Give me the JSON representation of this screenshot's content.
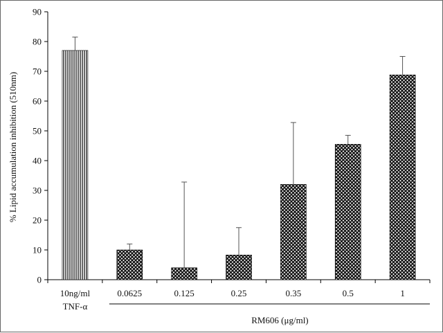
{
  "chart_data": {
    "type": "bar",
    "ylabel": "% Lipid accumulation inhibition (510nm)",
    "ylim": [
      0,
      90
    ],
    "yticks": [
      0,
      10,
      20,
      30,
      40,
      50,
      60,
      70,
      80,
      90
    ],
    "categories": [
      "10ng/ml",
      "0.0625",
      "0.125",
      "0.25",
      "0.35",
      "0.5",
      "1"
    ],
    "values": [
      77,
      10,
      4,
      8.3,
      32,
      45.5,
      68.8
    ],
    "error_upper": [
      81.5,
      12,
      32.8,
      17.5,
      52.8,
      48.5,
      75
    ],
    "patterns": [
      "vertical-lines",
      "crosshatch",
      "crosshatch",
      "crosshatch",
      "crosshatch",
      "crosshatch",
      "crosshatch"
    ],
    "group_labels": [
      {
        "text": "TNF-α",
        "categories": [
          0
        ]
      },
      {
        "text": "RM606 (μg/ml)",
        "categories": [
          1,
          2,
          3,
          4,
          5,
          6
        ]
      }
    ],
    "grid": false
  }
}
